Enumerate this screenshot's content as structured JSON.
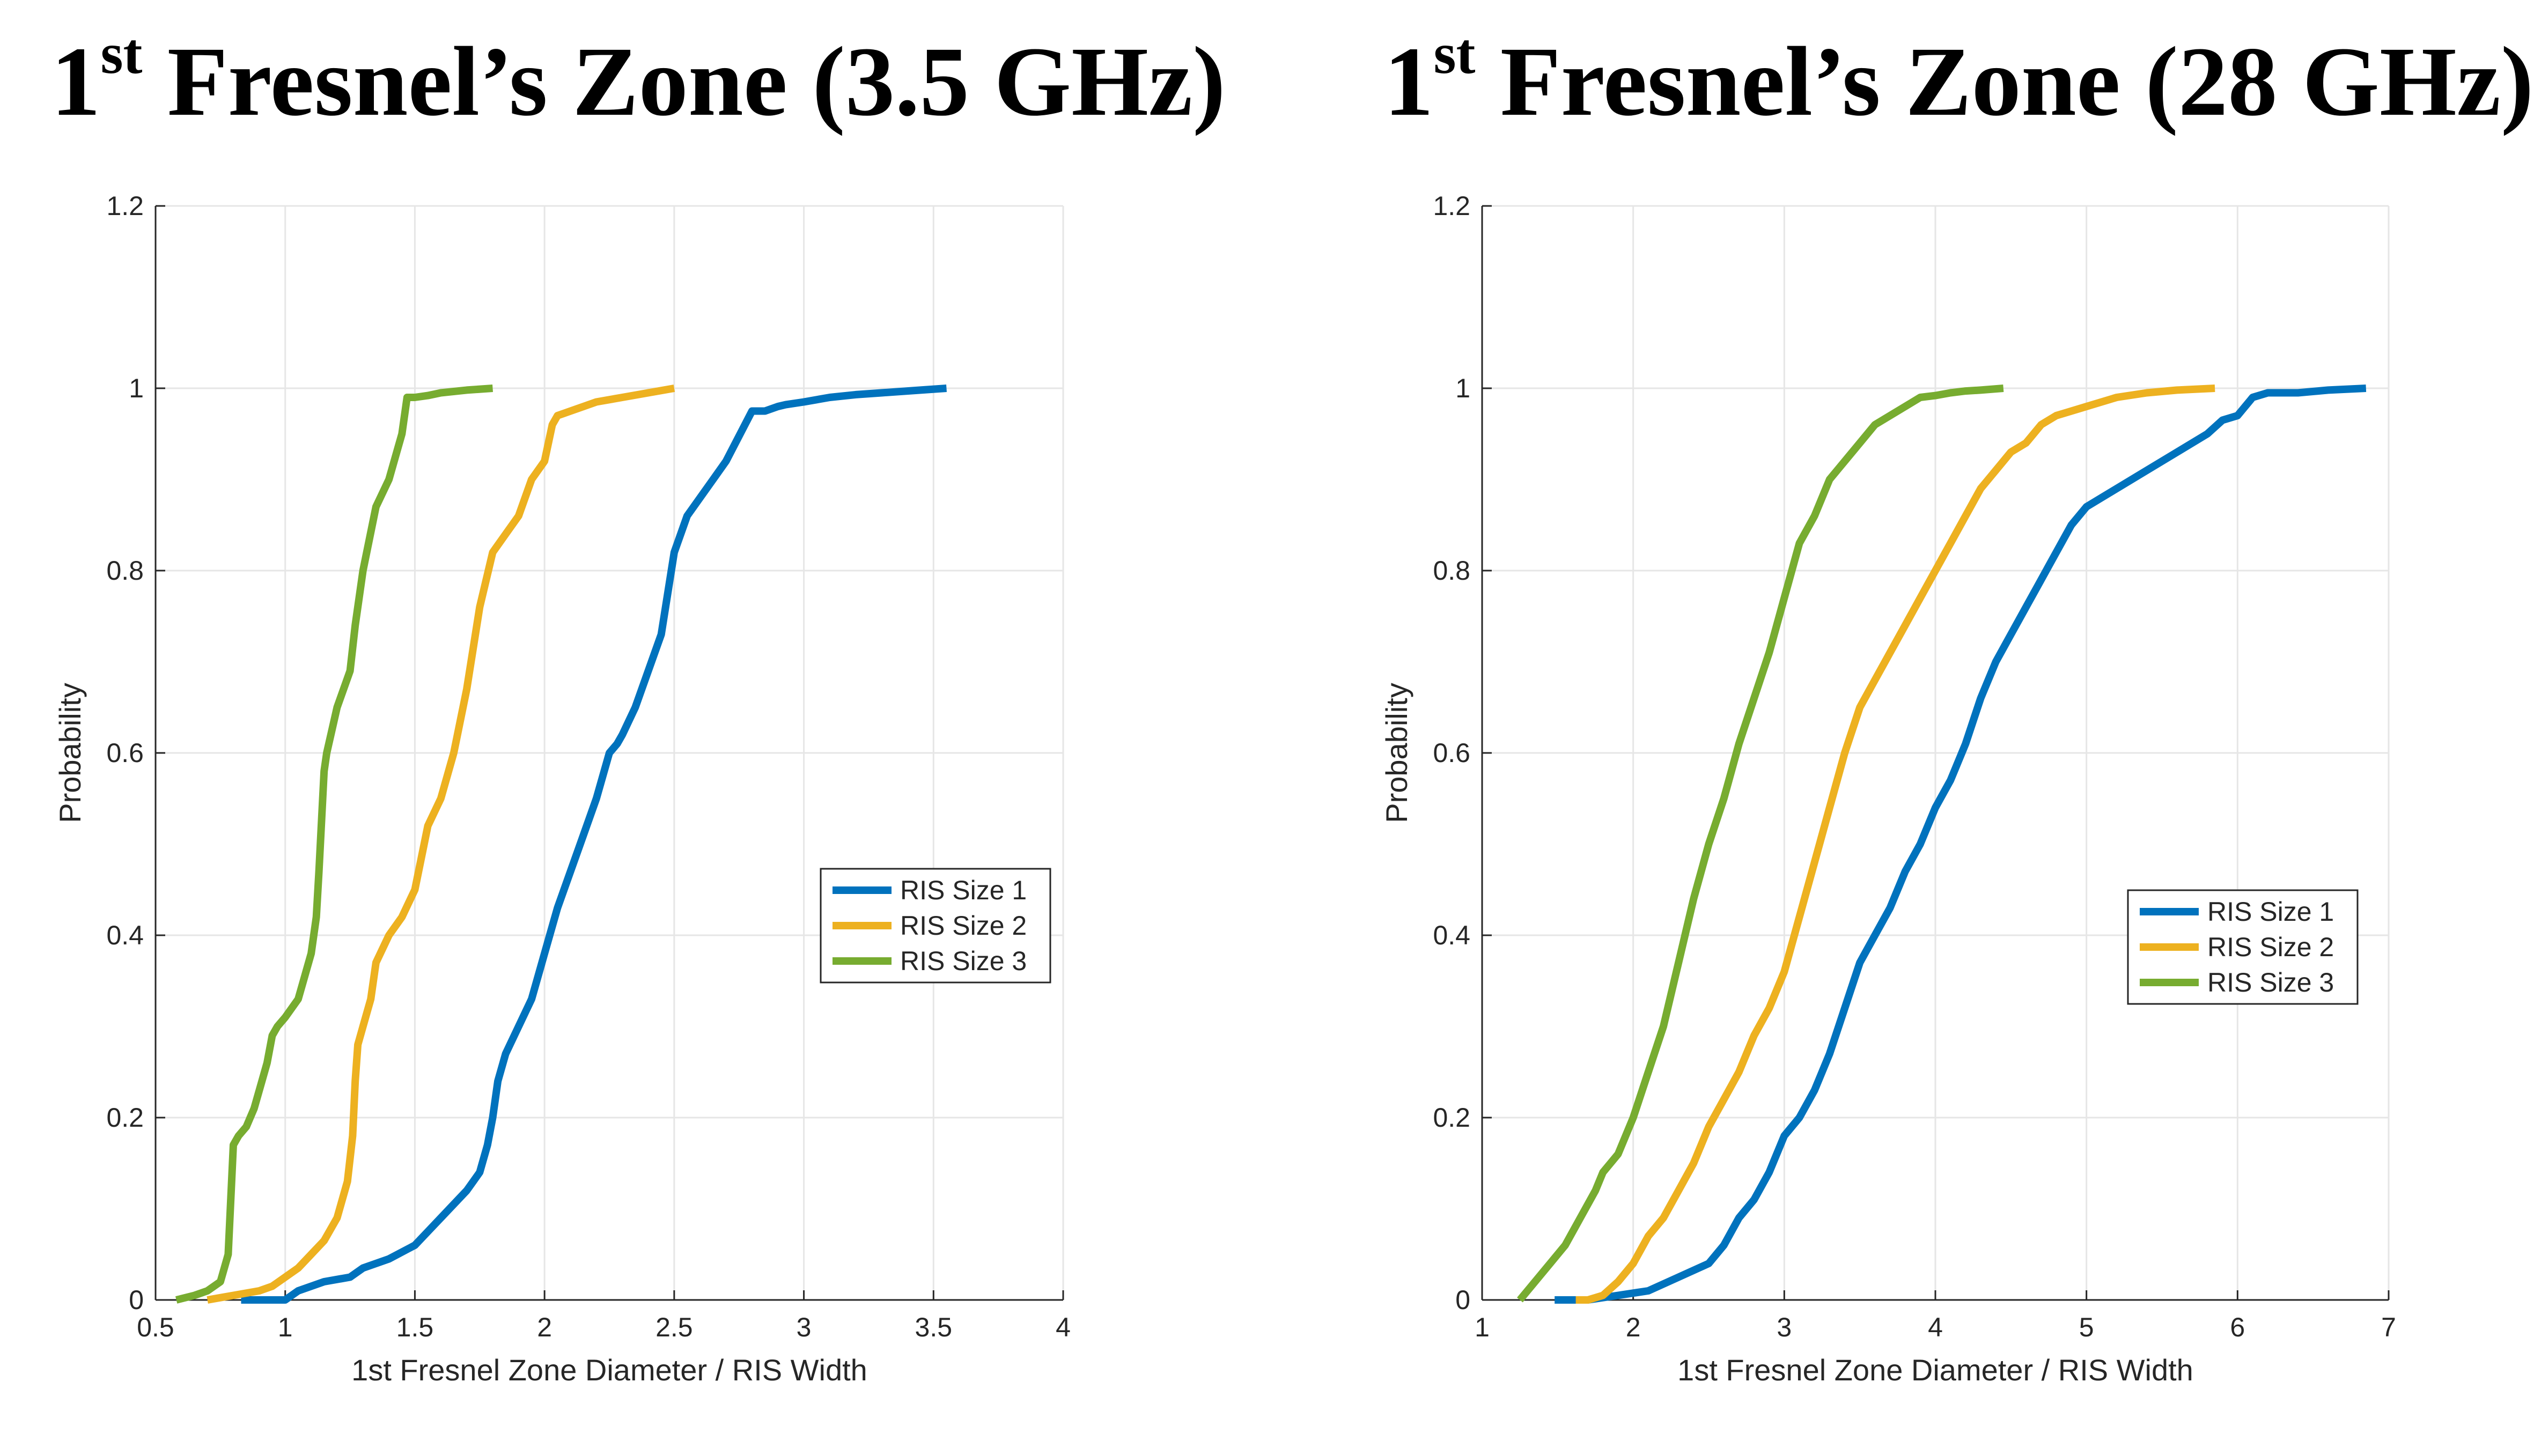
{
  "panels": [
    {
      "title_sup": "st",
      "title_number": "1",
      "title_text": " Fresnel’s Zone (3.5 GHz)"
    },
    {
      "title_sup": "st",
      "title_number": "1",
      "title_text": " Fresnel’s Zone (28 GHz)"
    }
  ],
  "colors": {
    "RIS Size 1": "#0072bd",
    "RIS Size 2": "#edb120",
    "RIS Size 3": "#77ac30",
    "grid": "#e6e6e6",
    "axis": "#262626"
  },
  "chart_data": [
    {
      "type": "line",
      "title": "1st Fresnel’s Zone (3.5 GHz)",
      "xlabel": "1st Fresnel Zone Diameter / RIS Width",
      "ylabel": "Probability",
      "xlim": [
        0.5,
        4
      ],
      "ylim": [
        0,
        1.2
      ],
      "xticks": [
        0.5,
        1,
        1.5,
        2,
        2.5,
        3,
        3.5,
        4
      ],
      "xtick_labels": [
        "0.5",
        "1",
        "1.5",
        "2",
        "2.5",
        "3",
        "3.5",
        "4"
      ],
      "yticks": [
        0,
        0.2,
        0.4,
        0.6,
        0.8,
        1,
        1.2
      ],
      "ytick_labels": [
        "0",
        "0.2",
        "0.4",
        "0.6",
        "0.8",
        "1",
        "1.2"
      ],
      "grid": true,
      "legend_position": "right-middle",
      "series": [
        {
          "name": "RIS Size 1",
          "x": [
            0.83,
            1.0,
            1.05,
            1.15,
            1.25,
            1.3,
            1.4,
            1.5,
            1.6,
            1.7,
            1.75,
            1.78,
            1.8,
            1.82,
            1.85,
            1.9,
            1.95,
            2.0,
            2.05,
            2.1,
            2.15,
            2.2,
            2.25,
            2.28,
            2.3,
            2.35,
            2.4,
            2.45,
            2.5,
            2.55,
            2.6,
            2.65,
            2.7,
            2.8,
            2.85,
            2.9,
            2.93,
            3.0,
            3.1,
            3.2,
            3.3,
            3.45,
            3.55
          ],
          "y": [
            0.0,
            0.0,
            0.01,
            0.02,
            0.025,
            0.035,
            0.045,
            0.06,
            0.09,
            0.12,
            0.14,
            0.17,
            0.2,
            0.24,
            0.27,
            0.3,
            0.33,
            0.38,
            0.43,
            0.47,
            0.51,
            0.55,
            0.6,
            0.61,
            0.62,
            0.65,
            0.69,
            0.73,
            0.82,
            0.86,
            0.88,
            0.9,
            0.92,
            0.975,
            0.975,
            0.98,
            0.982,
            0.985,
            0.99,
            0.993,
            0.995,
            0.998,
            1.0
          ]
        },
        {
          "name": "RIS Size 2",
          "x": [
            0.7,
            0.8,
            0.9,
            0.95,
            1.0,
            1.05,
            1.1,
            1.15,
            1.2,
            1.24,
            1.26,
            1.27,
            1.28,
            1.3,
            1.33,
            1.35,
            1.4,
            1.45,
            1.5,
            1.55,
            1.6,
            1.65,
            1.7,
            1.75,
            1.8,
            1.85,
            1.9,
            1.95,
            2.0,
            2.03,
            2.05,
            2.07,
            2.1,
            2.15,
            2.2,
            2.3,
            2.4,
            2.5
          ],
          "y": [
            0.0,
            0.005,
            0.01,
            0.015,
            0.025,
            0.035,
            0.05,
            0.065,
            0.09,
            0.13,
            0.18,
            0.24,
            0.28,
            0.3,
            0.33,
            0.37,
            0.4,
            0.42,
            0.45,
            0.52,
            0.55,
            0.6,
            0.67,
            0.76,
            0.82,
            0.84,
            0.86,
            0.9,
            0.92,
            0.96,
            0.97,
            0.972,
            0.975,
            0.98,
            0.985,
            0.99,
            0.995,
            1.0
          ]
        },
        {
          "name": "RIS Size 3",
          "x": [
            0.58,
            0.65,
            0.7,
            0.75,
            0.78,
            0.8,
            0.82,
            0.85,
            0.88,
            0.9,
            0.93,
            0.95,
            0.97,
            1.0,
            1.05,
            1.07,
            1.1,
            1.12,
            1.13,
            1.15,
            1.16,
            1.2,
            1.25,
            1.27,
            1.3,
            1.35,
            1.4,
            1.43,
            1.45,
            1.47,
            1.5,
            1.55,
            1.6,
            1.7,
            1.8
          ],
          "y": [
            0.0,
            0.005,
            0.01,
            0.02,
            0.05,
            0.17,
            0.18,
            0.19,
            0.21,
            0.23,
            0.26,
            0.29,
            0.3,
            0.31,
            0.33,
            0.35,
            0.38,
            0.42,
            0.47,
            0.58,
            0.6,
            0.65,
            0.69,
            0.74,
            0.8,
            0.87,
            0.9,
            0.93,
            0.95,
            0.99,
            0.99,
            0.992,
            0.995,
            0.998,
            1.0
          ]
        }
      ]
    },
    {
      "type": "line",
      "title": "1st Fresnel’s Zone (28 GHz)",
      "xlabel": "1st Fresnel Zone Diameter / RIS Width",
      "ylabel": "Probability",
      "xlim": [
        1,
        7
      ],
      "ylim": [
        0,
        1.2
      ],
      "xticks": [
        1,
        2,
        3,
        4,
        5,
        6,
        7
      ],
      "xtick_labels": [
        "1",
        "2",
        "3",
        "4",
        "5",
        "6",
        "7"
      ],
      "yticks": [
        0,
        0.2,
        0.4,
        0.6,
        0.8,
        1,
        1.2
      ],
      "ytick_labels": [
        "0",
        "0.2",
        "0.4",
        "0.6",
        "0.8",
        "1",
        "1.2"
      ],
      "grid": true,
      "legend_position": "right-middle",
      "series": [
        {
          "name": "RIS Size 1",
          "x": [
            1.48,
            1.7,
            1.9,
            2.1,
            2.3,
            2.5,
            2.6,
            2.7,
            2.8,
            2.9,
            3.0,
            3.1,
            3.2,
            3.3,
            3.4,
            3.5,
            3.6,
            3.7,
            3.8,
            3.9,
            4.0,
            4.1,
            4.2,
            4.3,
            4.4,
            4.5,
            4.6,
            4.7,
            4.8,
            4.9,
            5.0,
            5.1,
            5.2,
            5.4,
            5.6,
            5.8,
            5.9,
            6.0,
            6.1,
            6.2,
            6.4,
            6.6,
            6.85
          ],
          "y": [
            0.0,
            0.0,
            0.005,
            0.01,
            0.025,
            0.04,
            0.06,
            0.09,
            0.11,
            0.14,
            0.18,
            0.2,
            0.23,
            0.27,
            0.32,
            0.37,
            0.4,
            0.43,
            0.47,
            0.5,
            0.54,
            0.57,
            0.61,
            0.66,
            0.7,
            0.73,
            0.76,
            0.79,
            0.82,
            0.85,
            0.87,
            0.88,
            0.89,
            0.91,
            0.93,
            0.95,
            0.965,
            0.97,
            0.99,
            0.995,
            0.995,
            0.998,
            1.0
          ]
        },
        {
          "name": "RIS Size 2",
          "x": [
            1.62,
            1.7,
            1.8,
            1.9,
            2.0,
            2.1,
            2.2,
            2.3,
            2.4,
            2.5,
            2.6,
            2.7,
            2.8,
            2.9,
            3.0,
            3.1,
            3.2,
            3.3,
            3.4,
            3.5,
            3.6,
            3.7,
            3.8,
            3.9,
            4.0,
            4.1,
            4.2,
            4.3,
            4.4,
            4.5,
            4.6,
            4.7,
            4.8,
            5.0,
            5.2,
            5.4,
            5.6,
            5.85
          ],
          "y": [
            0.0,
            0.0,
            0.005,
            0.02,
            0.04,
            0.07,
            0.09,
            0.12,
            0.15,
            0.19,
            0.22,
            0.25,
            0.29,
            0.32,
            0.36,
            0.42,
            0.48,
            0.54,
            0.6,
            0.65,
            0.68,
            0.71,
            0.74,
            0.77,
            0.8,
            0.83,
            0.86,
            0.89,
            0.91,
            0.93,
            0.94,
            0.96,
            0.97,
            0.98,
            0.99,
            0.995,
            0.998,
            1.0
          ]
        },
        {
          "name": "RIS Size 3",
          "x": [
            1.25,
            1.35,
            1.45,
            1.55,
            1.65,
            1.75,
            1.8,
            1.9,
            2.0,
            2.1,
            2.2,
            2.3,
            2.4,
            2.5,
            2.6,
            2.7,
            2.8,
            2.9,
            3.0,
            3.1,
            3.2,
            3.3,
            3.4,
            3.5,
            3.6,
            3.7,
            3.8,
            3.9,
            4.0,
            4.1,
            4.2,
            4.3,
            4.45
          ],
          "y": [
            0.0,
            0.02,
            0.04,
            0.06,
            0.09,
            0.12,
            0.14,
            0.16,
            0.2,
            0.25,
            0.3,
            0.37,
            0.44,
            0.5,
            0.55,
            0.61,
            0.66,
            0.71,
            0.77,
            0.83,
            0.86,
            0.9,
            0.92,
            0.94,
            0.96,
            0.97,
            0.98,
            0.99,
            0.992,
            0.995,
            0.997,
            0.998,
            1.0
          ]
        }
      ]
    }
  ]
}
